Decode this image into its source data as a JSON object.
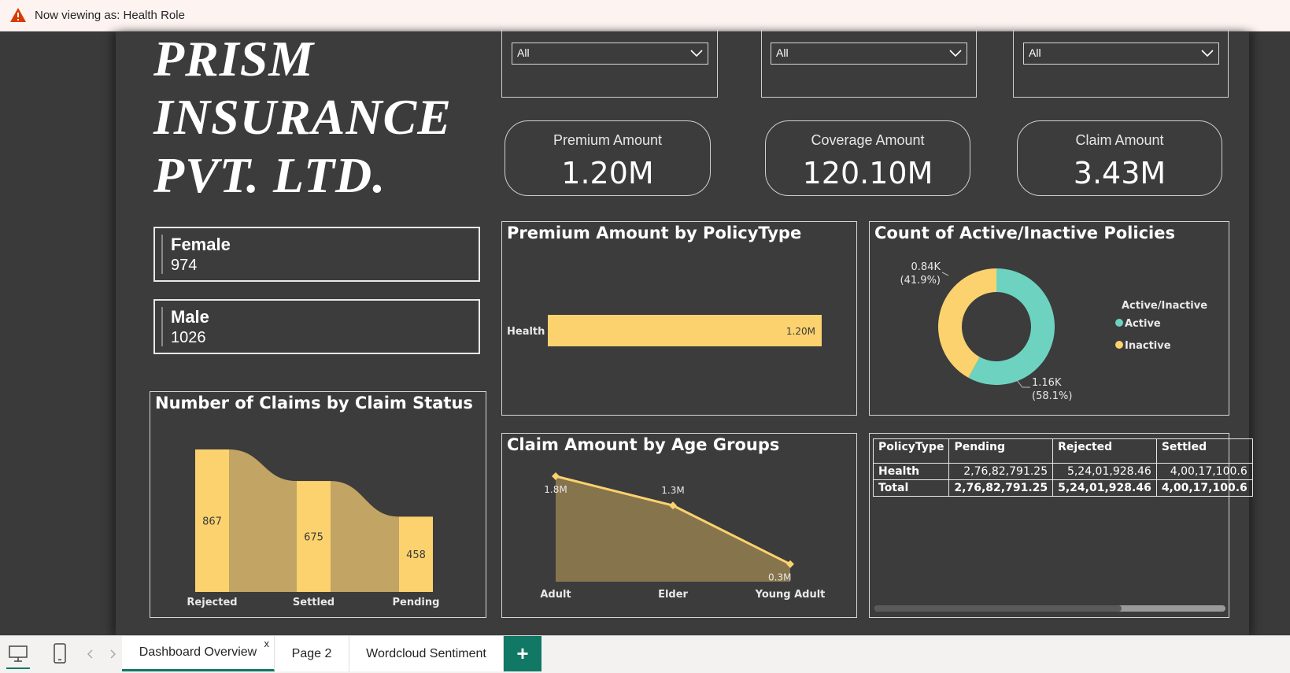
{
  "banner": {
    "text": "Now viewing as: Health Role"
  },
  "logo": {
    "line1": "PRISM",
    "line2": "INSURANCE",
    "line3": "PVT. LTD."
  },
  "slicers": [
    {
      "value": "All"
    },
    {
      "value": "All"
    },
    {
      "value": "All"
    }
  ],
  "kpis": [
    {
      "label": "Premium Amount",
      "value": "1.20M"
    },
    {
      "label": "Coverage Amount",
      "value": "120.10M"
    },
    {
      "label": "Claim Amount",
      "value": "3.43M"
    }
  ],
  "gender_cards": [
    {
      "label": "Female",
      "value": "974"
    },
    {
      "label": "Male",
      "value": "1026"
    }
  ],
  "charts": {
    "premium_by_policy": {
      "title": "Premium Amount by PolicyType"
    },
    "active_inactive": {
      "title": "Count of Active/Inactive Policies",
      "legend_title": "Active/Inactive"
    },
    "claims_by_status": {
      "title": "Number of Claims by Claim Status"
    },
    "claim_by_age": {
      "title": "Claim Amount by Age Groups"
    }
  },
  "chart_data": [
    {
      "type": "bar",
      "title": "Premium Amount by PolicyType",
      "orientation": "horizontal",
      "categories": [
        "Health"
      ],
      "values": [
        1.2
      ],
      "data_labels": [
        "1.20M"
      ],
      "color": "#fbd26e"
    },
    {
      "type": "pie",
      "subtype": "donut",
      "title": "Count of Active/Inactive Policies",
      "legend_title": "Active/Inactive",
      "legend_position": "right",
      "labels": [
        "Active",
        "Inactive"
      ],
      "values": [
        1.16,
        0.84
      ],
      "data_labels": [
        "1.16K\n(58.1%)",
        "0.84K\n(41.9%)"
      ],
      "label_lines": [
        [
          "1.16K",
          "(58.1%)"
        ],
        [
          "0.84K",
          "(41.9%)"
        ]
      ],
      "colors": [
        "#6dd3c0",
        "#fbd26e"
      ]
    },
    {
      "type": "bar",
      "subtype": "ribbon",
      "title": "Number of Claims by Claim Status",
      "categories": [
        "Rejected",
        "Settled",
        "Pending"
      ],
      "values": [
        867,
        675,
        458
      ],
      "color": "#fbd26e",
      "ribbon_color": "#c2a464"
    },
    {
      "type": "area",
      "title": "Claim Amount by Age Groups",
      "categories": [
        "Adult",
        "Elder",
        "Young Adult"
      ],
      "values": [
        1.8,
        1.3,
        0.3
      ],
      "data_labels": [
        "1.8M",
        "1.3M",
        "0.3M"
      ],
      "line_color": "#fbd26e",
      "fill_color": "#86744c"
    }
  ],
  "table": {
    "headers": [
      "PolicyType",
      "Pending",
      "Rejected",
      "Settled"
    ],
    "rows": [
      [
        "Health",
        "2,76,82,791.25",
        "5,24,01,928.46",
        "4,00,17,100.6"
      ],
      [
        "Total",
        "2,76,82,791.25",
        "5,24,01,928.46",
        "4,00,17,100.6"
      ]
    ]
  },
  "tabs": [
    {
      "label": "Dashboard Overview",
      "close": "x"
    },
    {
      "label": "Page 2"
    },
    {
      "label": "Wordcloud Sentiment"
    }
  ],
  "add_tab": "+"
}
